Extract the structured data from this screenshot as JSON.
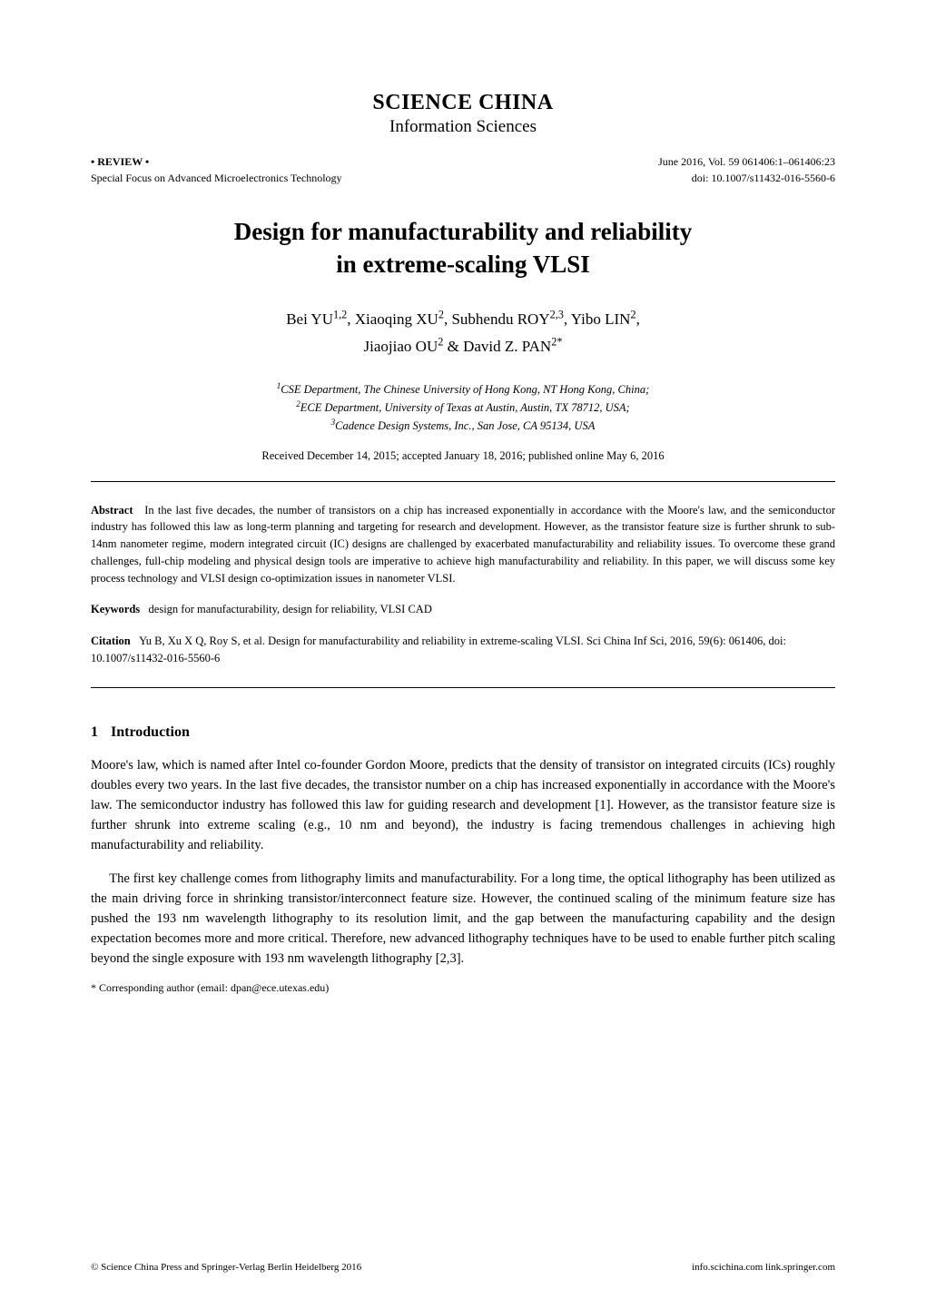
{
  "journal": {
    "title": "SCIENCE CHINA",
    "subtitle": "Information Sciences"
  },
  "meta": {
    "review": "• REVIEW •",
    "focus": "Special Focus on Advanced Microelectronics Technology",
    "issue": "June 2016, Vol. 59 061406:1–061406:23",
    "doi": "doi: 10.1007/s11432-016-5560-6"
  },
  "title": {
    "line1": "Design for manufacturability and reliability",
    "line2": "in extreme-scaling VLSI"
  },
  "authors": {
    "line1_html": "Bei YU<sup>1,2</sup>, Xiaoqing XU<sup>2</sup>, Subhendu ROY<sup>2,3</sup>, Yibo LIN<sup>2</sup>,",
    "line2_html": "Jiaojiao OU<sup>2</sup> & David Z. PAN<sup>2*</sup>"
  },
  "affiliations": {
    "a1_html": "<sup>1</sup>CSE Department, The Chinese University of Hong Kong, NT Hong Kong, China;",
    "a2_html": "<sup>2</sup>ECE Department, University of Texas at Austin, Austin, TX 78712, USA;",
    "a3_html": "<sup>3</sup>Cadence Design Systems, Inc., San Jose, CA 95134, USA"
  },
  "received": "Received December 14, 2015; accepted January 18, 2016; published online May 6, 2016",
  "abstract": {
    "label": "Abstract",
    "text": "In the last five decades, the number of transistors on a chip has increased exponentially in accordance with the Moore's law, and the semiconductor industry has followed this law as long-term planning and targeting for research and development. However, as the transistor feature size is further shrunk to sub-14nm nanometer regime, modern integrated circuit (IC) designs are challenged by exacerbated manufacturability and reliability issues. To overcome these grand challenges, full-chip modeling and physical design tools are imperative to achieve high manufacturability and reliability. In this paper, we will discuss some key process technology and VLSI design co-optimization issues in nanometer VLSI."
  },
  "keywords": {
    "label": "Keywords",
    "text": "design for manufacturability, design for reliability, VLSI CAD"
  },
  "citation": {
    "label": "Citation",
    "text": "Yu B, Xu X Q, Roy S, et al. Design for manufacturability and reliability in extreme-scaling VLSI. Sci China Inf Sci, 2016, 59(6): 061406, doi: 10.1007/s11432-016-5560-6"
  },
  "section1": {
    "num": "1",
    "title": "Introduction",
    "p1": "Moore's law, which is named after Intel co-founder Gordon Moore, predicts that the density of transistor on integrated circuits (ICs) roughly doubles every two years. In the last five decades, the transistor number on a chip has increased exponentially in accordance with the Moore's law. The semiconductor industry has followed this law for guiding research and development [1]. However, as the transistor feature size is further shrunk into extreme scaling (e.g., 10 nm and beyond), the industry is facing tremendous challenges in achieving high manufacturability and reliability.",
    "p2": "The first key challenge comes from lithography limits and manufacturability. For a long time, the optical lithography has been utilized as the main driving force in shrinking transistor/interconnect feature size. However, the continued scaling of the minimum feature size has pushed the 193 nm wavelength lithography to its resolution limit, and the gap between the manufacturing capability and the design expectation becomes more and more critical. Therefore, new advanced lithography techniques have to be used to enable further pitch scaling beyond the single exposure with 193 nm wavelength lithography [2,3]."
  },
  "corresponding": "* Corresponding author (email: dpan@ece.utexas.edu)",
  "footer": {
    "left": "© Science China Press and Springer-Verlag Berlin Heidelberg 2016",
    "right": "info.scichina.com   link.springer.com"
  }
}
